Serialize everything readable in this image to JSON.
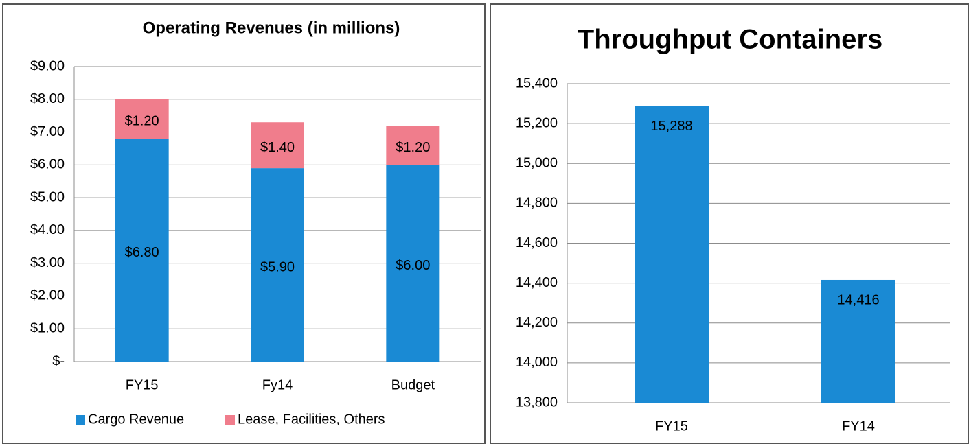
{
  "chart_data": [
    {
      "type": "stacked_bar",
      "title": "Operating Revenues (in millions)",
      "categories": [
        "FY15",
        "Fy14",
        "Budget"
      ],
      "series": [
        {
          "name": "Cargo Revenue",
          "color": "#1a8ad4",
          "values": [
            6.8,
            5.9,
            6.0
          ],
          "value_labels": [
            "$6.80",
            "$5.90",
            "$6.00"
          ]
        },
        {
          "name": "Lease, Facilities, Others",
          "color": "#f07d8c",
          "values": [
            1.2,
            1.4,
            1.2
          ],
          "value_labels": [
            "$1.20",
            "$1.40",
            "$1.20"
          ]
        }
      ],
      "ylim": [
        0,
        9
      ],
      "yticks": [
        {
          "value": 0,
          "label": "$-"
        },
        {
          "value": 1,
          "label": "$1.00"
        },
        {
          "value": 2,
          "label": "$2.00"
        },
        {
          "value": 3,
          "label": "$3.00"
        },
        {
          "value": 4,
          "label": "$4.00"
        },
        {
          "value": 5,
          "label": "$5.00"
        },
        {
          "value": 6,
          "label": "$6.00"
        },
        {
          "value": 7,
          "label": "$7.00"
        },
        {
          "value": 8,
          "label": "$8.00"
        },
        {
          "value": 9,
          "label": "$9.00"
        }
      ],
      "grid": true,
      "legend": "bottom"
    },
    {
      "type": "bar",
      "title": "Throughput Containers",
      "categories": [
        "FY15",
        "FY14"
      ],
      "values": [
        15288,
        14416
      ],
      "value_labels": [
        "15,288",
        "14,416"
      ],
      "color": "#1a8ad4",
      "ylim": [
        13800,
        15400
      ],
      "yticks": [
        {
          "value": 13800,
          "label": "13,800"
        },
        {
          "value": 14000,
          "label": "14,000"
        },
        {
          "value": 14200,
          "label": "14,200"
        },
        {
          "value": 14400,
          "label": "14,400"
        },
        {
          "value": 14600,
          "label": "14,600"
        },
        {
          "value": 14800,
          "label": "14,800"
        },
        {
          "value": 15000,
          "label": "15,000"
        },
        {
          "value": 15200,
          "label": "15,200"
        },
        {
          "value": 15400,
          "label": "15,400"
        }
      ],
      "grid": true
    }
  ]
}
